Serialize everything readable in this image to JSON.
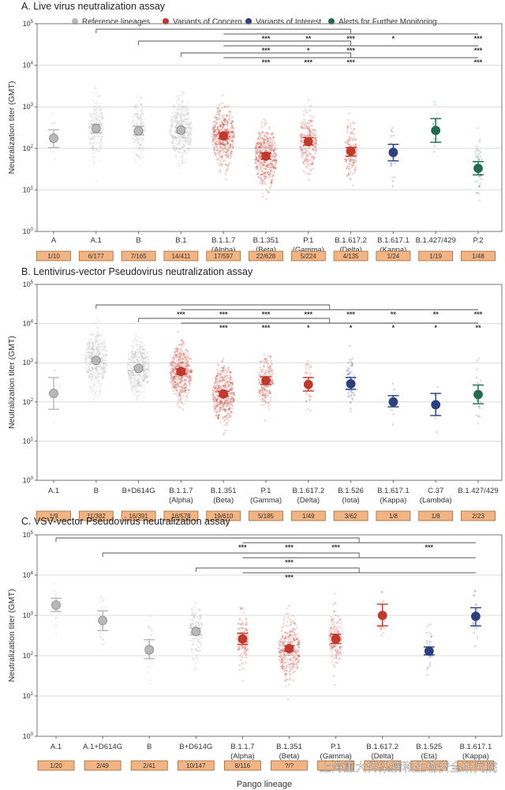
{
  "colors": {
    "reference": "#b8b8b8",
    "concern": "#c0392b",
    "interest": "#2c3f7e",
    "alert": "#226b4e",
    "box_fill": "#f3b483",
    "box_border": "#9a6a3c",
    "grid": "#dcdcdc",
    "bracket": "#555555"
  },
  "legend": [
    {
      "label": "Reference lineages",
      "group": "reference"
    },
    {
      "label": "Variants of Concern",
      "group": "concern"
    },
    {
      "label": "Variants of Interest",
      "group": "interest"
    },
    {
      "label": "Alerts for Further Monitoring",
      "group": "alert"
    }
  ],
  "xlabel": "Pango lineage",
  "watermark": "上海重大传染病和生物安全研究院",
  "chart_data": [
    {
      "type": "scatter",
      "title": "A. Live virus neutralization assay",
      "ylabel": "Neutralization titer (GMT)",
      "yscale": "log",
      "ylim": [
        1,
        100000
      ],
      "yticks": [
        {
          "base": "10",
          "exp": "0"
        },
        {
          "base": "10",
          "exp": "1"
        },
        {
          "base": "10",
          "exp": "2"
        },
        {
          "base": "10",
          "exp": "3"
        },
        {
          "base": "10",
          "exp": "4"
        },
        {
          "base": "10",
          "exp": "5"
        }
      ],
      "grid": true,
      "legend_position": "top",
      "categories": [
        {
          "name": "A",
          "sub": "",
          "group": "reference",
          "gmt": 175,
          "ci": [
            105,
            280
          ],
          "n": "1/10"
        },
        {
          "name": "A.1",
          "sub": "",
          "group": "reference",
          "gmt": 300,
          "ci": [
            235,
            380
          ],
          "n": "6/177"
        },
        {
          "name": "B",
          "sub": "",
          "group": "reference",
          "gmt": 265,
          "ci": [
            210,
            340
          ],
          "n": "7/165"
        },
        {
          "name": "B.1",
          "sub": "",
          "group": "reference",
          "gmt": 275,
          "ci": [
            240,
            315
          ],
          "n": "14/411"
        },
        {
          "name": "B.1.1.7",
          "sub": "(Alpha)",
          "group": "concern",
          "gmt": 200,
          "ci": [
            170,
            235
          ],
          "n": "17/597"
        },
        {
          "name": "B.1.351",
          "sub": "(Beta)",
          "group": "concern",
          "gmt": 65,
          "ci": [
            55,
            78
          ],
          "n": "22/628"
        },
        {
          "name": "P.1",
          "sub": "(Gamma)",
          "group": "concern",
          "gmt": 145,
          "ci": [
            120,
            180
          ],
          "n": "5/224"
        },
        {
          "name": "B.1.617.2",
          "sub": "(Delta)",
          "group": "concern",
          "gmt": 85,
          "ci": [
            65,
            105
          ],
          "n": "4/135"
        },
        {
          "name": "B.1.617.1",
          "sub": "(Kappa)",
          "group": "interest",
          "gmt": 80,
          "ci": [
            50,
            125
          ],
          "n": "1/24"
        },
        {
          "name": "B.1.427/429",
          "sub": "",
          "group": "alert",
          "gmt": 270,
          "ci": [
            140,
            520
          ],
          "n": "1/19"
        },
        {
          "name": "P.2",
          "sub": "",
          "group": "alert",
          "gmt": 33,
          "ci": [
            23,
            48
          ],
          "n": "1/48"
        }
      ],
      "comparisons": [
        {
          "ref": 1,
          "stars": {
            "5": "***",
            "6": "**",
            "7": "***",
            "8": "*",
            "10": "***"
          }
        },
        {
          "ref": 2,
          "stars": {
            "5": "***",
            "6": "*",
            "7": "***",
            "10": "***"
          }
        },
        {
          "ref": 3,
          "stars": {
            "5": "***",
            "6": "***",
            "7": "***",
            "10": "***"
          }
        }
      ],
      "bracket_span": [
        4,
        7,
        10
      ]
    },
    {
      "type": "scatter",
      "title": "B. Lentivirus-vector Pseudovirus neutralization assay",
      "ylabel": "Neutralization titer (GMT)",
      "yscale": "log",
      "ylim": [
        1,
        100000
      ],
      "yticks": [
        {
          "base": "10",
          "exp": "0"
        },
        {
          "base": "10",
          "exp": "1"
        },
        {
          "base": "10",
          "exp": "2"
        },
        {
          "base": "10",
          "exp": "3"
        },
        {
          "base": "10",
          "exp": "4"
        },
        {
          "base": "10",
          "exp": "5"
        }
      ],
      "grid": true,
      "categories": [
        {
          "name": "A.1",
          "sub": "",
          "group": "reference",
          "gmt": 165,
          "ci": [
            65,
            420
          ],
          "n": "1/9"
        },
        {
          "name": "B",
          "sub": "",
          "group": "reference",
          "gmt": 1150,
          "ci": [
            1050,
            1270
          ],
          "n": "11/382"
        },
        {
          "name": "B+D614G",
          "sub": "",
          "group": "reference",
          "gmt": 720,
          "ci": [
            660,
            790
          ],
          "n": "16/391"
        },
        {
          "name": "B.1.1.7",
          "sub": "(Alpha)",
          "group": "concern",
          "gmt": 600,
          "ci": [
            520,
            700
          ],
          "n": "16/578"
        },
        {
          "name": "B.1.351",
          "sub": "(Beta)",
          "group": "concern",
          "gmt": 160,
          "ci": [
            140,
            185
          ],
          "n": "19/610"
        },
        {
          "name": "P.1",
          "sub": "(Gamma)",
          "group": "concern",
          "gmt": 350,
          "ci": [
            280,
            440
          ],
          "n": "5/185"
        },
        {
          "name": "B.1.617.2",
          "sub": "(Delta)",
          "group": "concern",
          "gmt": 280,
          "ci": [
            190,
            420
          ],
          "n": "1/49"
        },
        {
          "name": "B.1.526",
          "sub": "(Iota)",
          "group": "interest",
          "gmt": 290,
          "ci": [
            210,
            420
          ],
          "n": "3/62"
        },
        {
          "name": "B.1.617.1",
          "sub": "(Kappa)",
          "group": "interest",
          "gmt": 100,
          "ci": [
            75,
            145
          ],
          "n": "1/8"
        },
        {
          "name": "C.37",
          "sub": "(Lambda)",
          "group": "interest",
          "gmt": 85,
          "ci": [
            45,
            165
          ],
          "n": "1/8"
        },
        {
          "name": "B.1.427/429",
          "sub": "",
          "group": "alert",
          "gmt": 155,
          "ci": [
            90,
            270
          ],
          "n": "2/23"
        }
      ],
      "comparisons": [
        {
          "ref": 1,
          "stars": {
            "3": "***",
            "4": "***",
            "5": "***",
            "6": "***",
            "7": "***",
            "8": "**",
            "9": "**",
            "10": "***"
          }
        },
        {
          "ref": 2,
          "stars": {
            "4": "***",
            "5": "***",
            "6": "*",
            "7": "*",
            "8": "*",
            "9": "*",
            "10": "**"
          }
        }
      ],
      "bracket_span": [
        3,
        6.5,
        10
      ]
    },
    {
      "type": "scatter",
      "title": "C. VSV-vector Pseudovirus neutralization assay",
      "ylabel": "Neutralization titer (GMT)",
      "yscale": "log",
      "ylim": [
        1,
        100000
      ],
      "yticks": [
        {
          "base": "10",
          "exp": "0"
        },
        {
          "base": "10",
          "exp": "1"
        },
        {
          "base": "10",
          "exp": "2"
        },
        {
          "base": "10",
          "exp": "3"
        },
        {
          "base": "10",
          "exp": "4"
        },
        {
          "base": "10",
          "exp": "5"
        }
      ],
      "grid": true,
      "categories": [
        {
          "name": "A.1",
          "sub": "",
          "group": "reference",
          "gmt": 1800,
          "ci": [
            1250,
            2650
          ],
          "n": "1/20"
        },
        {
          "name": "A.1+D614G",
          "sub": "",
          "group": "reference",
          "gmt": 750,
          "ci": [
            420,
            1300
          ],
          "n": "2/49"
        },
        {
          "name": "B",
          "sub": "",
          "group": "reference",
          "gmt": 140,
          "ci": [
            85,
            250
          ],
          "n": "2/41"
        },
        {
          "name": "B+D614G",
          "sub": "",
          "group": "reference",
          "gmt": 400,
          "ci": [
            330,
            480
          ],
          "n": "10/147"
        },
        {
          "name": "B.1.1.7",
          "sub": "(Alpha)",
          "group": "concern",
          "gmt": 260,
          "ci": [
            190,
            360
          ],
          "n": "8/116"
        },
        {
          "name": "B.1.351",
          "sub": "(Beta)",
          "group": "concern",
          "gmt": 150,
          "ci": [
            130,
            175
          ],
          "n": "?/?"
        },
        {
          "name": "P.1",
          "sub": "(Gamma)",
          "group": "concern",
          "gmt": 260,
          "ci": [
            200,
            340
          ],
          "n": ""
        },
        {
          "name": "B.1.617.2",
          "sub": "(Delta)",
          "group": "concern",
          "gmt": 1000,
          "ci": [
            550,
            1900
          ],
          "n": ""
        },
        {
          "name": "B.1.525",
          "sub": "(Eta)",
          "group": "interest",
          "gmt": 130,
          "ci": [
            105,
            165
          ],
          "n": ""
        },
        {
          "name": "B.1.617.1",
          "sub": "(Kappa)",
          "group": "interest",
          "gmt": 950,
          "ci": [
            550,
            1550
          ],
          "n": ""
        }
      ],
      "comparisons": [
        {
          "ref": 0,
          "stars": {
            "4": "***",
            "5": "***",
            "6": "***",
            "8": "***"
          }
        },
        {
          "ref": 1,
          "stars": {
            "5": "***"
          }
        },
        {
          "ref": 3,
          "stars": {
            "5": "***"
          }
        }
      ],
      "bracket_span": [
        4,
        6.5,
        9
      ]
    }
  ]
}
